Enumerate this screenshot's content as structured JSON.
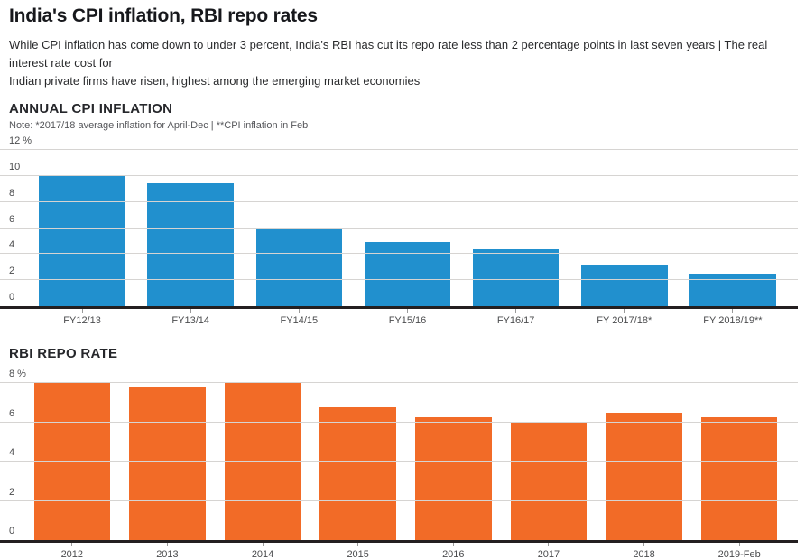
{
  "page": {
    "title": "India's CPI inflation, RBI repo rates",
    "subtitle_lines": [
      "While CPI inflation has come down to under 3 percent, India's RBI has cut its repo rate less than 2 percentage points in last seven years | The real interest rate cost for",
      "Indian private firms have risen, highest among the emerging market economies"
    ]
  },
  "colors": {
    "cpi_bar": "#2190ce",
    "repo_bar": "#f26b27",
    "axis": "#231f20",
    "gridline": "#d6d4d2"
  },
  "chart_data": [
    {
      "type": "bar",
      "title": "ANNUAL CPI INFLATION",
      "note": "Note: *2017/18 average inflation for April-Dec | **CPI inflation in Feb",
      "categories": [
        "FY12/13",
        "FY13/14",
        "FY14/15",
        "FY15/16",
        "FY16/17",
        "FY 2017/18*",
        "FY 2018/19**"
      ],
      "values": [
        10.0,
        9.4,
        5.9,
        4.9,
        4.4,
        3.2,
        2.5
      ],
      "unit": "%",
      "ylabel": "",
      "xlabel": "",
      "ylim": [
        0,
        12
      ],
      "y_ticks": [
        {
          "v": 0,
          "label": "0"
        },
        {
          "v": 2,
          "label": "2"
        },
        {
          "v": 4,
          "label": "4"
        },
        {
          "v": 6,
          "label": "6"
        },
        {
          "v": 8,
          "label": "8"
        },
        {
          "v": 10,
          "label": "10"
        },
        {
          "v": 12,
          "label": "12 %"
        }
      ],
      "bar_color": "#2190ce",
      "grid": true,
      "legend": "none"
    },
    {
      "type": "bar",
      "title": "RBI REPO RATE",
      "note": "",
      "categories": [
        "2012",
        "2013",
        "2014",
        "2015",
        "2016",
        "2017",
        "2018",
        "2019-Feb"
      ],
      "values": [
        8.0,
        7.75,
        8.0,
        6.75,
        6.25,
        6.0,
        6.5,
        6.25
      ],
      "unit": "%",
      "ylabel": "",
      "xlabel": "",
      "ylim": [
        0,
        8
      ],
      "y_ticks": [
        {
          "v": 0,
          "label": "0"
        },
        {
          "v": 2,
          "label": "2"
        },
        {
          "v": 4,
          "label": "4"
        },
        {
          "v": 6,
          "label": "6"
        },
        {
          "v": 8,
          "label": "8 %"
        }
      ],
      "bar_color": "#f26b27",
      "grid": true,
      "legend": "none"
    }
  ]
}
